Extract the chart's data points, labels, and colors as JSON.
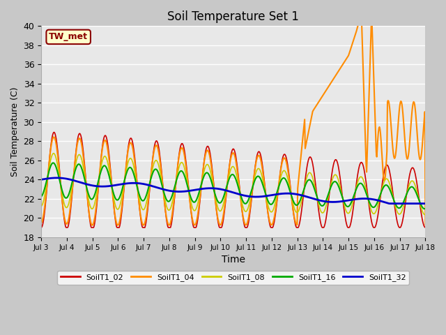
{
  "title": "Soil Temperature Set 1",
  "xlabel": "Time",
  "ylabel": "Soil Temperature (C)",
  "ylim": [
    18,
    40
  ],
  "fig_bg": "#c8c8c8",
  "plot_bg": "#e8e8e8",
  "grid_color": "#ffffff",
  "annotation_text": "TW_met",
  "annotation_bg": "#ffffcc",
  "annotation_border": "#8b0000",
  "series_names": [
    "SoilT1_02",
    "SoilT1_04",
    "SoilT1_08",
    "SoilT1_16",
    "SoilT1_32"
  ],
  "series_colors": [
    "#cc0000",
    "#ff8c00",
    "#cccc00",
    "#00aa00",
    "#0000cc"
  ],
  "series_lw": [
    1.2,
    1.5,
    1.2,
    1.5,
    2.0
  ],
  "xtick_labels": [
    "Jul 3",
    "Jul 4",
    "Jul 5",
    "Jul 6",
    "Jul 7",
    "Jul 8",
    "Jul 9",
    "Jul 10",
    "Jul 11",
    "Jul 12",
    "Jul 13",
    "Jul 14",
    "Jul 15",
    "Jul 16",
    "Jul 17",
    "Jul 18"
  ],
  "n_days": 15
}
